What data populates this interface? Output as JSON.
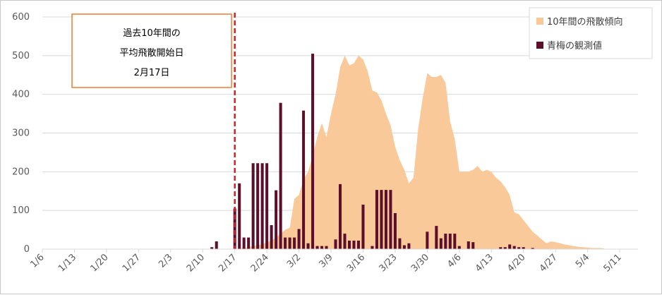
{
  "chart_data": {
    "type": "bar",
    "ylim": [
      0,
      600
    ],
    "yticks": [
      "0",
      "100",
      "200",
      "300",
      "400",
      "500",
      "600"
    ],
    "xticks": [
      "1/6",
      "1/13",
      "1/20",
      "1/27",
      "2/3",
      "2/10",
      "2/17",
      "2/24",
      "3/2",
      "3/9",
      "3/16",
      "3/23",
      "3/30",
      "4/6",
      "4/13",
      "4/20",
      "4/27",
      "5/4",
      "5/11"
    ],
    "grid": true,
    "legend_position": "top-right",
    "colors": {
      "trend": "#f9c99a",
      "observed": "#5c0f2a",
      "marker": "#dc1e1e",
      "note_border": "#ed7d31"
    },
    "annotation": {
      "lines": [
        "過去10年間の",
        "平均飛散開始日",
        "2月17日"
      ],
      "marker_date": "2/17"
    },
    "series": [
      {
        "name": "10年間の飛散傾向",
        "kind": "area",
        "points": [
          [
            "2/17",
            0
          ],
          [
            "2/18",
            2
          ],
          [
            "2/19",
            3
          ],
          [
            "2/20",
            5
          ],
          [
            "2/21",
            8
          ],
          [
            "2/22",
            10
          ],
          [
            "2/23",
            12
          ],
          [
            "2/24",
            18
          ],
          [
            "2/25",
            22
          ],
          [
            "2/26",
            30
          ],
          [
            "2/27",
            40
          ],
          [
            "2/28",
            50
          ],
          [
            "2/29",
            55
          ],
          [
            "3/1",
            130
          ],
          [
            "3/2",
            140
          ],
          [
            "3/3",
            180
          ],
          [
            "3/4",
            200
          ],
          [
            "3/5",
            240
          ],
          [
            "3/6",
            290
          ],
          [
            "3/7",
            325
          ],
          [
            "3/8",
            290
          ],
          [
            "3/9",
            350
          ],
          [
            "3/10",
            400
          ],
          [
            "3/11",
            470
          ],
          [
            "3/12",
            500
          ],
          [
            "3/13",
            475
          ],
          [
            "3/14",
            480
          ],
          [
            "3/15",
            500
          ],
          [
            "3/16",
            490
          ],
          [
            "3/17",
            460
          ],
          [
            "3/18",
            410
          ],
          [
            "3/19",
            405
          ],
          [
            "3/20",
            385
          ],
          [
            "3/21",
            350
          ],
          [
            "3/22",
            320
          ],
          [
            "3/23",
            265
          ],
          [
            "3/24",
            230
          ],
          [
            "3/25",
            205
          ],
          [
            "3/26",
            170
          ],
          [
            "3/27",
            185
          ],
          [
            "3/28",
            310
          ],
          [
            "3/29",
            390
          ],
          [
            "3/30",
            455
          ],
          [
            "3/31",
            445
          ],
          [
            "4/1",
            445
          ],
          [
            "4/2",
            450
          ],
          [
            "4/3",
            430
          ],
          [
            "4/4",
            330
          ],
          [
            "4/5",
            285
          ],
          [
            "4/6",
            200
          ],
          [
            "4/7",
            200
          ],
          [
            "4/8",
            200
          ],
          [
            "4/9",
            205
          ],
          [
            "4/10",
            215
          ],
          [
            "4/11",
            200
          ],
          [
            "4/12",
            205
          ],
          [
            "4/13",
            200
          ],
          [
            "4/14",
            185
          ],
          [
            "4/15",
            175
          ],
          [
            "4/16",
            160
          ],
          [
            "4/17",
            140
          ],
          [
            "4/18",
            95
          ],
          [
            "4/19",
            90
          ],
          [
            "4/20",
            75
          ],
          [
            "4/21",
            60
          ],
          [
            "4/22",
            45
          ],
          [
            "4/23",
            35
          ],
          [
            "4/24",
            25
          ],
          [
            "4/25",
            15
          ],
          [
            "4/26",
            20
          ],
          [
            "4/27",
            18
          ],
          [
            "4/28",
            15
          ],
          [
            "4/29",
            12
          ],
          [
            "4/30",
            10
          ],
          [
            "5/1",
            8
          ],
          [
            "5/2",
            6
          ],
          [
            "5/3",
            5
          ],
          [
            "5/4",
            4
          ],
          [
            "5/5",
            3
          ],
          [
            "5/6",
            3
          ],
          [
            "5/7",
            3
          ],
          [
            "5/8",
            0
          ]
        ]
      },
      {
        "name": "青梅の観測値",
        "kind": "bar",
        "points": [
          [
            "2/12",
            5
          ],
          [
            "2/13",
            20
          ],
          [
            "2/17",
            105
          ],
          [
            "2/18",
            170
          ],
          [
            "2/19",
            30
          ],
          [
            "2/20",
            30
          ],
          [
            "2/21",
            222
          ],
          [
            "2/22",
            222
          ],
          [
            "2/23",
            222
          ],
          [
            "2/24",
            222
          ],
          [
            "2/25",
            62
          ],
          [
            "2/26",
            152
          ],
          [
            "2/27",
            378
          ],
          [
            "2/28",
            30
          ],
          [
            "2/29",
            30
          ],
          [
            "3/1",
            30
          ],
          [
            "3/2",
            52
          ],
          [
            "3/3",
            358
          ],
          [
            "3/4",
            15
          ],
          [
            "3/5",
            505
          ],
          [
            "3/6",
            8
          ],
          [
            "3/7",
            8
          ],
          [
            "3/8",
            8
          ],
          [
            "3/10",
            25
          ],
          [
            "3/11",
            168
          ],
          [
            "3/12",
            40
          ],
          [
            "3/13",
            22
          ],
          [
            "3/14",
            22
          ],
          [
            "3/15",
            22
          ],
          [
            "3/16",
            115
          ],
          [
            "3/18",
            8
          ],
          [
            "3/19",
            153
          ],
          [
            "3/20",
            153
          ],
          [
            "3/21",
            153
          ],
          [
            "3/22",
            153
          ],
          [
            "3/23",
            93
          ],
          [
            "3/24",
            28
          ],
          [
            "3/25",
            10
          ],
          [
            "3/26",
            15
          ],
          [
            "3/30",
            45
          ],
          [
            "4/1",
            60
          ],
          [
            "4/2",
            28
          ],
          [
            "4/3",
            40
          ],
          [
            "4/4",
            40
          ],
          [
            "4/5",
            40
          ],
          [
            "4/6",
            8
          ],
          [
            "4/8",
            20
          ],
          [
            "4/9",
            18
          ],
          [
            "4/15",
            5
          ],
          [
            "4/16",
            5
          ],
          [
            "4/17",
            12
          ],
          [
            "4/18",
            8
          ],
          [
            "4/19",
            5
          ],
          [
            "4/20",
            5
          ],
          [
            "4/22",
            3
          ]
        ]
      }
    ]
  }
}
